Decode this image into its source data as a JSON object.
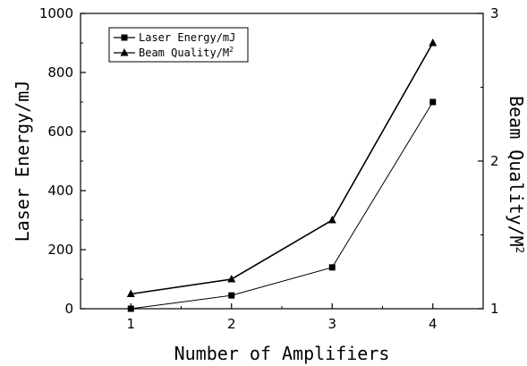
{
  "chart_data": {
    "type": "line",
    "title": "",
    "xlabel": "Number of Amplifiers",
    "ylabel_left": "Laser Energy/mJ",
    "ylabel_right_prefix": "Beam Quality/M",
    "ylabel_right_sup": "2",
    "x": [
      1,
      2,
      3,
      4
    ],
    "x_ticks": [
      "1",
      "2",
      "3",
      "4"
    ],
    "xlim": [
      0.5,
      4.5
    ],
    "ylim_left": [
      0,
      1000
    ],
    "ylim_right": [
      1,
      3
    ],
    "y_ticks_left": [
      "0",
      "200",
      "400",
      "600",
      "800",
      "1000"
    ],
    "y_ticks_right": [
      "1",
      "2",
      "3"
    ],
    "legend_position": "top-left",
    "grid": false,
    "series": [
      {
        "name": "Laser Energy/mJ",
        "legend_prefix": "Laser Energy/mJ",
        "legend_sup": "",
        "axis": "left",
        "marker": "square",
        "color": "#000000",
        "values": [
          0,
          45,
          140,
          700
        ]
      },
      {
        "name": "Beam Quality/M2",
        "legend_prefix": "Beam Quality/M",
        "legend_sup": "2",
        "axis": "right",
        "marker": "triangle",
        "color": "#000000",
        "values": [
          1.1,
          1.2,
          1.6,
          2.8
        ]
      }
    ]
  }
}
